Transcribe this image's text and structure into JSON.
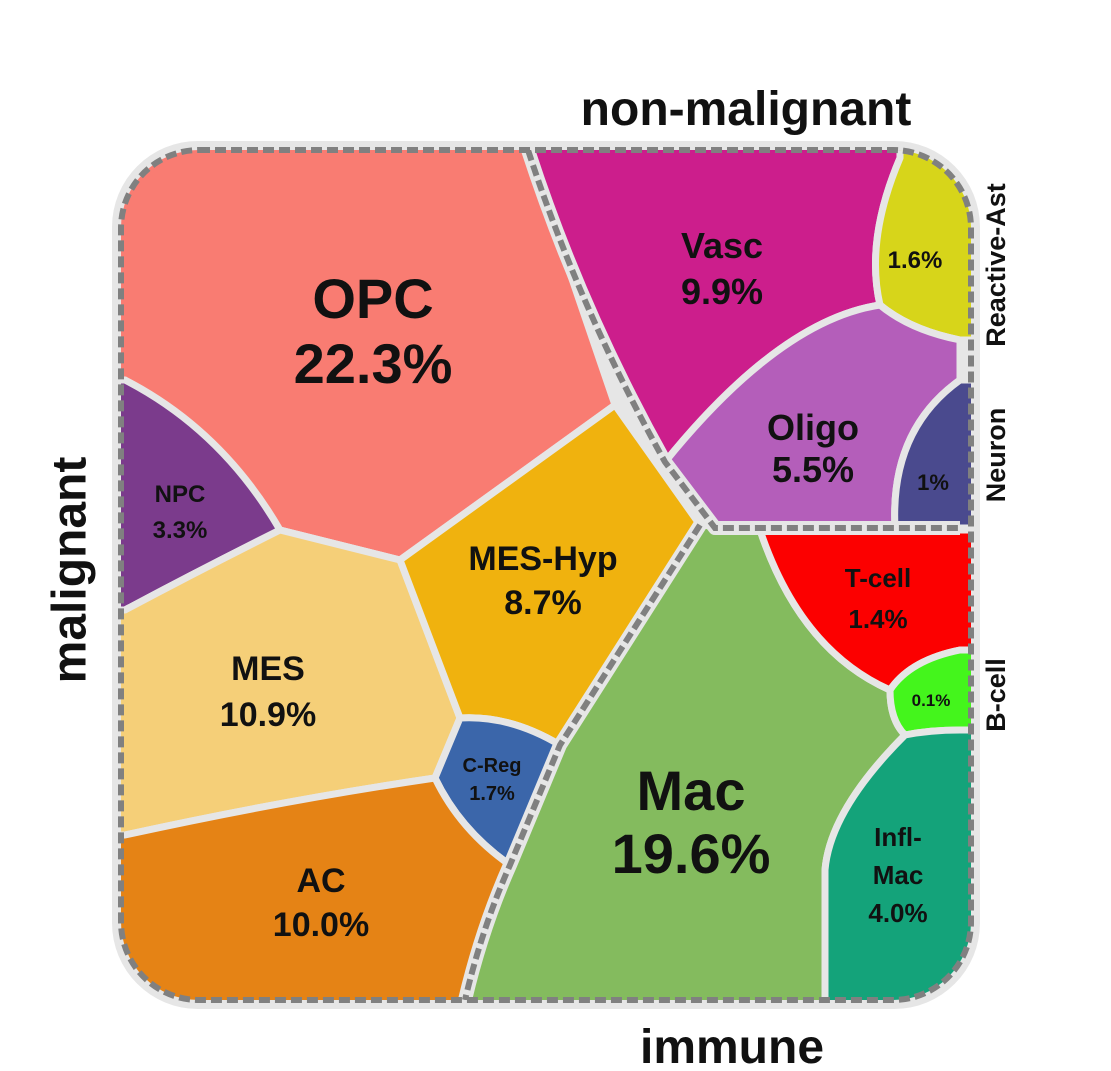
{
  "chart_data": {
    "type": "voronoi-treemap",
    "unit": "%",
    "groups": [
      {
        "name": "malignant",
        "cells": [
          {
            "id": "opc",
            "label": "OPC",
            "value": 22.3,
            "value_text": "22.3%",
            "color": "#f97c72"
          },
          {
            "id": "npc",
            "label": "NPC",
            "value": 3.3,
            "value_text": "3.3%",
            "color": "#7b3b8c"
          },
          {
            "id": "mes",
            "label": "MES",
            "value": 10.9,
            "value_text": "10.9%",
            "color": "#f5cf78"
          },
          {
            "id": "meshyp",
            "label": "MES-Hyp",
            "value": 8.7,
            "value_text": "8.7%",
            "color": "#f0b20e"
          },
          {
            "id": "creg",
            "label": "C-Reg",
            "value": 1.7,
            "value_text": "1.7%",
            "color": "#3b66aa"
          },
          {
            "id": "ac",
            "label": "AC",
            "value": 10.0,
            "value_text": "10.0%",
            "color": "#e58315"
          }
        ]
      },
      {
        "name": "non-malignant",
        "cells": [
          {
            "id": "vasc",
            "label": "Vasc",
            "value": 9.9,
            "value_text": "9.9%",
            "color": "#cc1e8c"
          },
          {
            "id": "reactast",
            "label": "Reactive-Ast",
            "value": 1.6,
            "value_text": "1.6%",
            "color": "#d7d51a"
          },
          {
            "id": "oligo",
            "label": "Oligo",
            "value": 5.5,
            "value_text": "5.5%",
            "color": "#b45eba"
          },
          {
            "id": "neuron",
            "label": "Neuron",
            "value": 1.0,
            "value_text": "1%",
            "color": "#4a4a8e"
          }
        ]
      },
      {
        "name": "immune",
        "cells": [
          {
            "id": "mac",
            "label": "Mac",
            "value": 19.6,
            "value_text": "19.6%",
            "color": "#84bb5e"
          },
          {
            "id": "tcell",
            "label": "T-cell",
            "value": 1.4,
            "value_text": "1.4%",
            "color": "#fc0000"
          },
          {
            "id": "bcell",
            "label": "B-cell",
            "value": 0.1,
            "value_text": "0.1%",
            "color": "#44f51c"
          },
          {
            "id": "inflmac",
            "label": "Infl-Mac",
            "label_line1": "Infl-",
            "label_line2": "Mac",
            "value": 4.0,
            "value_text": "4.0%",
            "color": "#14a37a"
          }
        ]
      }
    ]
  }
}
